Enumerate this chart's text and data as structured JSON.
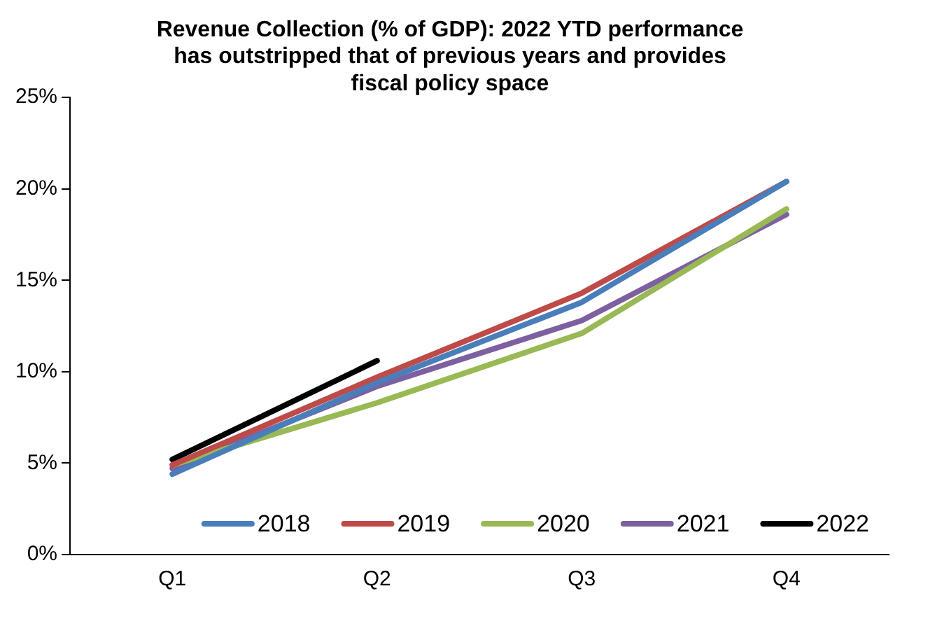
{
  "chart_data": {
    "type": "line",
    "title": [
      "Revenue Collection (% of GDP): 2022 YTD performance",
      "has outstripped that of previous years and provides",
      "fiscal policy space"
    ],
    "categories": [
      "Q1",
      "Q2",
      "Q3",
      "Q4"
    ],
    "series": [
      {
        "name": "2018",
        "color": "#4a7ebb",
        "values": [
          4.4,
          9.4,
          13.8,
          20.4
        ]
      },
      {
        "name": "2019",
        "color": "#be4b48",
        "values": [
          4.9,
          9.7,
          14.3,
          20.4
        ]
      },
      {
        "name": "2020",
        "color": "#98b954",
        "values": [
          4.9,
          8.3,
          12.1,
          18.9
        ]
      },
      {
        "name": "2021",
        "color": "#7d60a0",
        "values": [
          4.7,
          9.2,
          12.8,
          18.6
        ]
      },
      {
        "name": "2022",
        "color": "#000000",
        "values": [
          5.2,
          10.6,
          null,
          null
        ]
      }
    ],
    "ylim": [
      0,
      25
    ],
    "yticks": [
      {
        "value": 0,
        "label": "0%"
      },
      {
        "value": 5,
        "label": "5%"
      },
      {
        "value": 10,
        "label": "10%"
      },
      {
        "value": 15,
        "label": "15%"
      },
      {
        "value": 20,
        "label": "20%"
      },
      {
        "value": 25,
        "label": "25%"
      }
    ],
    "grid": false,
    "legend": "bottom",
    "marker": "none",
    "line_style": "solid"
  }
}
